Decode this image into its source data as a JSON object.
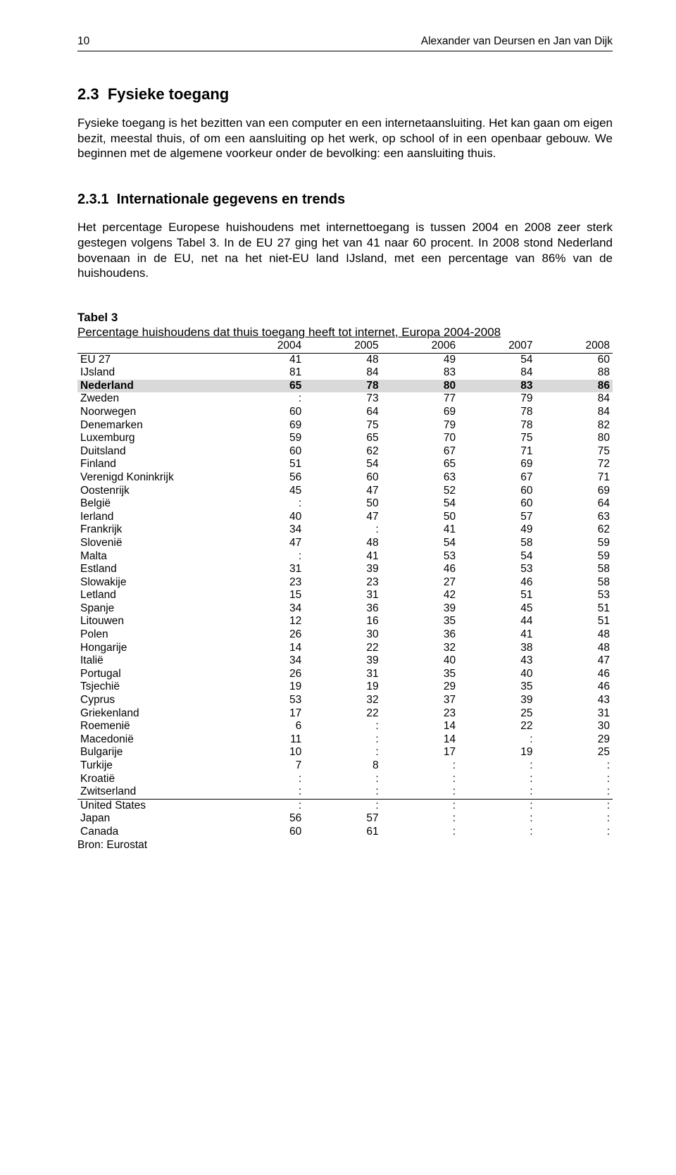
{
  "header": {
    "page_number": "10",
    "authors": "Alexander van Deursen en Jan van Dijk"
  },
  "section_h2": {
    "number": "2.3",
    "title": "Fysieke toegang"
  },
  "para1": "Fysieke toegang is het bezitten van een computer en een internetaansluiting. Het kan gaan om eigen bezit, meestal thuis, of om een aansluiting op het werk, op school of in een openbaar gebouw. We beginnen met de algemene voorkeur onder de bevolking: een aansluiting thuis.",
  "section_h3": {
    "number": "2.3.1",
    "title": "Internationale gegevens en trends"
  },
  "para2": "Het percentage Europese huishoudens met internettoegang is tussen 2004 en 2008 zeer sterk gestegen volgens Tabel 3. In de EU 27 ging het van 41 naar 60 procent. In 2008 stond Nederland bovenaan in de EU, net na het niet-EU land IJsland, met een percentage van 86% van de huishoudens.",
  "table": {
    "label": "Tabel 3",
    "caption": "Percentage huishoudens dat thuis toegang heeft tot internet, Europa 2004-2008",
    "columns": [
      "",
      "2004",
      "2005",
      "2006",
      "2007",
      "2008"
    ],
    "rows": [
      {
        "cells": [
          "EU 27",
          "41",
          "48",
          "49",
          "54",
          "60"
        ]
      },
      {
        "cells": [
          "IJsland",
          "81",
          "84",
          "83",
          "84",
          "88"
        ]
      },
      {
        "cells": [
          "Nederland",
          "65",
          "78",
          "80",
          "83",
          "86"
        ],
        "highlight": true
      },
      {
        "cells": [
          "Zweden",
          ":",
          "73",
          "77",
          "79",
          "84"
        ]
      },
      {
        "cells": [
          "Noorwegen",
          "60",
          "64",
          "69",
          "78",
          "84"
        ]
      },
      {
        "cells": [
          "Denemarken",
          "69",
          "75",
          "79",
          "78",
          "82"
        ]
      },
      {
        "cells": [
          "Luxemburg",
          "59",
          "65",
          "70",
          "75",
          "80"
        ]
      },
      {
        "cells": [
          "Duitsland",
          "60",
          "62",
          "67",
          "71",
          "75"
        ]
      },
      {
        "cells": [
          "Finland",
          "51",
          "54",
          "65",
          "69",
          "72"
        ]
      },
      {
        "cells": [
          "Verenigd Koninkrijk",
          "56",
          "60",
          "63",
          "67",
          "71"
        ]
      },
      {
        "cells": [
          "Oostenrijk",
          "45",
          "47",
          "52",
          "60",
          "69"
        ]
      },
      {
        "cells": [
          "België",
          ":",
          "50",
          "54",
          "60",
          "64"
        ]
      },
      {
        "cells": [
          "Ierland",
          "40",
          "47",
          "50",
          "57",
          "63"
        ]
      },
      {
        "cells": [
          "Frankrijk",
          "34",
          ":",
          "41",
          "49",
          "62"
        ]
      },
      {
        "cells": [
          "Slovenië",
          "47",
          "48",
          "54",
          "58",
          "59"
        ]
      },
      {
        "cells": [
          "Malta",
          ":",
          "41",
          "53",
          "54",
          "59"
        ]
      },
      {
        "cells": [
          "Estland",
          "31",
          "39",
          "46",
          "53",
          "58"
        ]
      },
      {
        "cells": [
          "Slowakije",
          "23",
          "23",
          "27",
          "46",
          "58"
        ]
      },
      {
        "cells": [
          "Letland",
          "15",
          "31",
          "42",
          "51",
          "53"
        ]
      },
      {
        "cells": [
          "Spanje",
          "34",
          "36",
          "39",
          "45",
          "51"
        ]
      },
      {
        "cells": [
          "Litouwen",
          "12",
          "16",
          "35",
          "44",
          "51"
        ]
      },
      {
        "cells": [
          "Polen",
          "26",
          "30",
          "36",
          "41",
          "48"
        ]
      },
      {
        "cells": [
          "Hongarije",
          "14",
          "22",
          "32",
          "38",
          "48"
        ]
      },
      {
        "cells": [
          "Italië",
          "34",
          "39",
          "40",
          "43",
          "47"
        ]
      },
      {
        "cells": [
          "Portugal",
          "26",
          "31",
          "35",
          "40",
          "46"
        ]
      },
      {
        "cells": [
          "Tsjechië",
          "19",
          "19",
          "29",
          "35",
          "46"
        ]
      },
      {
        "cells": [
          "Cyprus",
          "53",
          "32",
          "37",
          "39",
          "43"
        ]
      },
      {
        "cells": [
          "Griekenland",
          "17",
          "22",
          "23",
          "25",
          "31"
        ]
      },
      {
        "cells": [
          "Roemenië",
          "6",
          ":",
          "14",
          "22",
          "30"
        ]
      },
      {
        "cells": [
          "Macedonië",
          "11",
          ":",
          "14",
          ":",
          "29"
        ]
      },
      {
        "cells": [
          "Bulgarije",
          "10",
          ":",
          "17",
          "19",
          "25"
        ]
      },
      {
        "cells": [
          "Turkije",
          "7",
          "8",
          ":",
          ":",
          ":"
        ]
      },
      {
        "cells": [
          "Kroatië",
          ":",
          ":",
          ":",
          ":",
          ":"
        ]
      },
      {
        "cells": [
          "Zwitserland",
          ":",
          ":",
          ":",
          ":",
          ":"
        ]
      },
      {
        "cells": [
          "United States",
          ":",
          ":",
          ":",
          ":",
          ":"
        ],
        "lineAbove": true
      },
      {
        "cells": [
          "Japan",
          "56",
          "57",
          ":",
          ":",
          ":"
        ]
      },
      {
        "cells": [
          "Canada",
          "60",
          "61",
          ":",
          ":",
          ":"
        ]
      }
    ],
    "source": "Bron: Eurostat"
  }
}
